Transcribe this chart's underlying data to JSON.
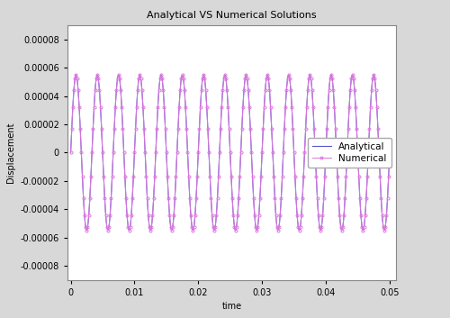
{
  "title": "Analytical VS Numerical Solutions",
  "xlabel": "time",
  "ylabel": "Displacement",
  "xlim": [
    -0.0005,
    0.051
  ],
  "ylim": [
    -9e-05,
    9e-05
  ],
  "yticks": [
    -8e-05,
    -6e-05,
    -4e-05,
    -2e-05,
    0,
    2e-05,
    4e-05,
    6e-05,
    8e-05
  ],
  "xticks": [
    0,
    0.01,
    0.02,
    0.03,
    0.04,
    0.05
  ],
  "analytical_color": "#5555cc",
  "numerical_color": "#dd77dd",
  "amplitude": 5.5e-05,
  "frequency": 300,
  "n_points_analytical": 3000,
  "n_points_numerical": 301,
  "title_fontsize": 8,
  "label_fontsize": 7,
  "tick_fontsize": 7,
  "legend_fontsize": 7.5,
  "plot_bgcolor": "#ffffff",
  "figure_facecolor": "#d8d8d8"
}
